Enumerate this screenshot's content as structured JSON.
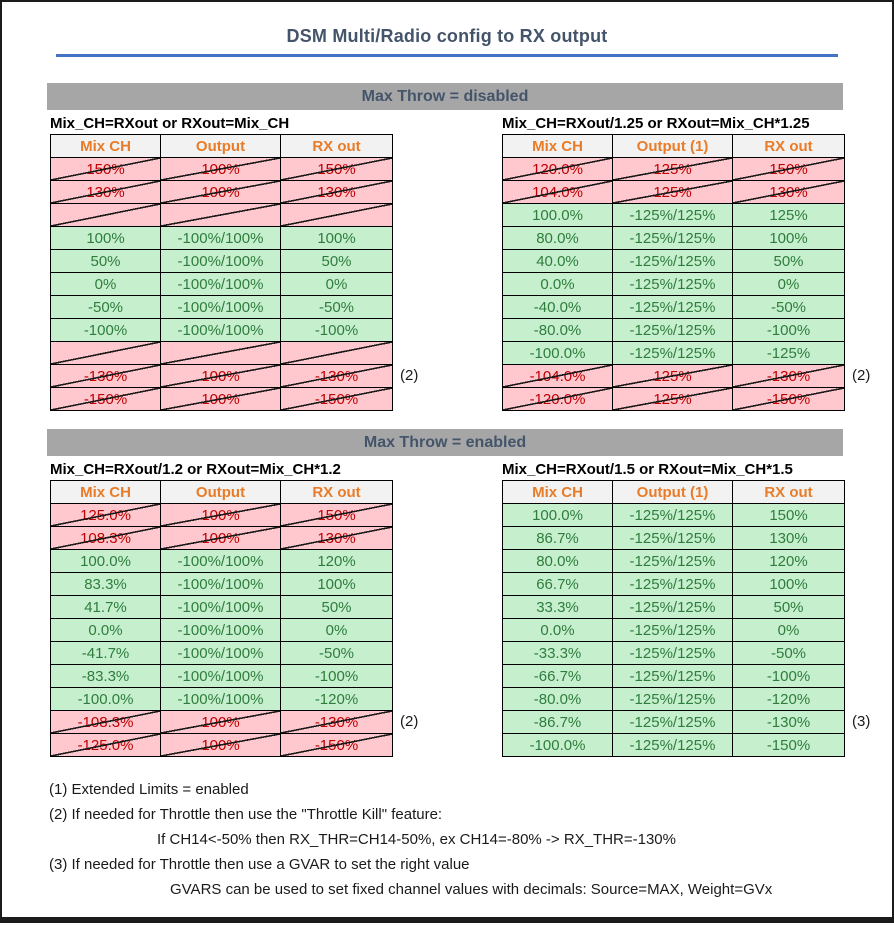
{
  "title": "DSM Multi/Radio config to RX output",
  "sections": [
    {
      "banner": "Max Throw = disabled",
      "tables": [
        {
          "subtitle": "Mix_CH=RXout or RXout=Mix_CH",
          "columns": [
            "Mix CH",
            "Output",
            "RX out"
          ],
          "rows": [
            {
              "state": "invalid",
              "cells": [
                "150%",
                "100%",
                "150%"
              ]
            },
            {
              "state": "invalid",
              "cells": [
                "130%",
                "100%",
                "130%"
              ]
            },
            {
              "state": "invalid",
              "cells": [
                "",
                "",
                ""
              ]
            },
            {
              "state": "valid",
              "cells": [
                "100%",
                "-100%/100%",
                "100%"
              ]
            },
            {
              "state": "valid",
              "cells": [
                "50%",
                "-100%/100%",
                "50%"
              ]
            },
            {
              "state": "valid",
              "cells": [
                "0%",
                "-100%/100%",
                "0%"
              ]
            },
            {
              "state": "valid",
              "cells": [
                "-50%",
                "-100%/100%",
                "-50%"
              ]
            },
            {
              "state": "valid",
              "cells": [
                "-100%",
                "-100%/100%",
                "-100%"
              ]
            },
            {
              "state": "invalid",
              "cells": [
                "",
                "",
                ""
              ]
            },
            {
              "state": "invalid",
              "cells": [
                "-130%",
                "100%",
                "-130%"
              ],
              "annotation": "(2)"
            },
            {
              "state": "invalid",
              "cells": [
                "-150%",
                "100%",
                "-150%"
              ]
            }
          ]
        },
        {
          "subtitle": "Mix_CH=RXout/1.25 or RXout=Mix_CH*1.25",
          "columns": [
            "Mix CH",
            "Output (1)",
            "RX out"
          ],
          "rows": [
            {
              "state": "invalid",
              "cells": [
                "120.0%",
                "125%",
                "150%"
              ]
            },
            {
              "state": "invalid",
              "cells": [
                "104.0%",
                "125%",
                "130%"
              ]
            },
            {
              "state": "valid",
              "cells": [
                "100.0%",
                "-125%/125%",
                "125%"
              ]
            },
            {
              "state": "valid",
              "cells": [
                "80.0%",
                "-125%/125%",
                "100%"
              ]
            },
            {
              "state": "valid",
              "cells": [
                "40.0%",
                "-125%/125%",
                "50%"
              ]
            },
            {
              "state": "valid",
              "cells": [
                "0.0%",
                "-125%/125%",
                "0%"
              ]
            },
            {
              "state": "valid",
              "cells": [
                "-40.0%",
                "-125%/125%",
                "-50%"
              ]
            },
            {
              "state": "valid",
              "cells": [
                "-80.0%",
                "-125%/125%",
                "-100%"
              ]
            },
            {
              "state": "valid",
              "cells": [
                "-100.0%",
                "-125%/125%",
                "-125%"
              ]
            },
            {
              "state": "invalid",
              "cells": [
                "-104.0%",
                "125%",
                "-130%"
              ],
              "annotation": "(2)"
            },
            {
              "state": "invalid",
              "cells": [
                "-120.0%",
                "125%",
                "-150%"
              ]
            }
          ]
        }
      ]
    },
    {
      "banner": "Max Throw = enabled",
      "tables": [
        {
          "subtitle": "Mix_CH=RXout/1.2 or RXout=Mix_CH*1.2",
          "columns": [
            "Mix CH",
            "Output",
            "RX out"
          ],
          "rows": [
            {
              "state": "invalid",
              "cells": [
                "125.0%",
                "100%",
                "150%"
              ]
            },
            {
              "state": "invalid",
              "cells": [
                "108.3%",
                "100%",
                "130%"
              ]
            },
            {
              "state": "valid",
              "cells": [
                "100.0%",
                "-100%/100%",
                "120%"
              ]
            },
            {
              "state": "valid",
              "cells": [
                "83.3%",
                "-100%/100%",
                "100%"
              ]
            },
            {
              "state": "valid",
              "cells": [
                "41.7%",
                "-100%/100%",
                "50%"
              ]
            },
            {
              "state": "valid",
              "cells": [
                "0.0%",
                "-100%/100%",
                "0%"
              ]
            },
            {
              "state": "valid",
              "cells": [
                "-41.7%",
                "-100%/100%",
                "-50%"
              ]
            },
            {
              "state": "valid",
              "cells": [
                "-83.3%",
                "-100%/100%",
                "-100%"
              ]
            },
            {
              "state": "valid",
              "cells": [
                "-100.0%",
                "-100%/100%",
                "-120%"
              ]
            },
            {
              "state": "invalid",
              "cells": [
                "-108.3%",
                "100%",
                "-130%"
              ],
              "annotation": "(2)"
            },
            {
              "state": "invalid",
              "cells": [
                "-125.0%",
                "100%",
                "-150%"
              ]
            }
          ]
        },
        {
          "subtitle": "Mix_CH=RXout/1.5 or RXout=Mix_CH*1.5",
          "columns": [
            "Mix CH",
            "Output (1)",
            "RX out"
          ],
          "rows": [
            {
              "state": "valid",
              "cells": [
                "100.0%",
                "-125%/125%",
                "150%"
              ]
            },
            {
              "state": "valid",
              "cells": [
                "86.7%",
                "-125%/125%",
                "130%"
              ]
            },
            {
              "state": "valid",
              "cells": [
                "80.0%",
                "-125%/125%",
                "120%"
              ]
            },
            {
              "state": "valid",
              "cells": [
                "66.7%",
                "-125%/125%",
                "100%"
              ]
            },
            {
              "state": "valid",
              "cells": [
                "33.3%",
                "-125%/125%",
                "50%"
              ]
            },
            {
              "state": "valid",
              "cells": [
                "0.0%",
                "-125%/125%",
                "0%"
              ]
            },
            {
              "state": "valid",
              "cells": [
                "-33.3%",
                "-125%/125%",
                "-50%"
              ]
            },
            {
              "state": "valid",
              "cells": [
                "-66.7%",
                "-125%/125%",
                "-100%"
              ]
            },
            {
              "state": "valid",
              "cells": [
                "-80.0%",
                "-125%/125%",
                "-120%"
              ]
            },
            {
              "state": "valid",
              "cells": [
                "-86.7%",
                "-125%/125%",
                "-130%"
              ],
              "annotation": "(3)"
            },
            {
              "state": "valid",
              "cells": [
                "-100.0%",
                "-125%/125%",
                "-150%"
              ]
            }
          ]
        }
      ]
    }
  ],
  "notes": [
    {
      "indent": 0,
      "text": "(1) Extended Limits = enabled"
    },
    {
      "indent": 0,
      "text": "(2) If needed for Throttle then use the \"Throttle Kill\" feature:"
    },
    {
      "indent": 1,
      "text": "If CH14<-50% then RX_THR=CH14-50%, ex CH14=-80% -> RX_THR=-130%"
    },
    {
      "indent": 0,
      "text": "(3) If needed for Throttle then use a GVAR to set the right value"
    },
    {
      "indent": 2,
      "text": "GVARS can be used to set fixed channel values with decimals: Source=MAX, Weight=GVx"
    }
  ],
  "colors": {
    "title_text": "#44546A",
    "title_rule": "#4472C4",
    "banner_bg": "#A6A6A6",
    "banner_text": "#44546A",
    "header_bg": "#F2F2F2",
    "header_text": "#E87C28",
    "valid_bg": "#C6EFCE",
    "valid_text": "#2E7D3C",
    "invalid_bg": "#FFC7CE",
    "invalid_text": "#C00000",
    "grid_line": "#000000",
    "strike_line": "#1A1A1A",
    "frame": "#1B1B1B",
    "note_text": "#1A1A1A"
  }
}
